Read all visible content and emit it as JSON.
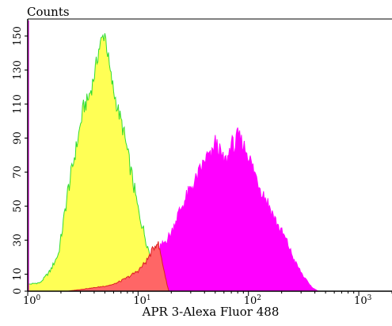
{
  "chart_data": {
    "type": "area",
    "ylabel": "Counts",
    "xlabel": "APR 3-Alexa Fluor 488",
    "x_scale": "log",
    "xlim": [
      1,
      2000
    ],
    "ylim": [
      0,
      160
    ],
    "y_ticks": [
      0,
      10,
      30,
      50,
      70,
      90,
      110,
      130,
      150
    ],
    "y_tick_labels": [
      "0",
      "10",
      "30",
      "50",
      "70",
      "90",
      "110",
      "130",
      "150"
    ],
    "x_ticks": [
      1,
      10,
      100,
      1000
    ],
    "x_tick_labels": [
      {
        "base": "10",
        "exp": "0"
      },
      {
        "base": "10",
        "exp": "1"
      },
      {
        "base": "10",
        "exp": "2"
      },
      {
        "base": "10",
        "exp": "3"
      }
    ],
    "grid": false,
    "series": [
      {
        "fill": "#ffff55",
        "stroke": "#33dd33",
        "x": [
          1.0,
          1.3,
          1.6,
          1.9,
          2.1,
          2.3,
          2.6,
          2.9,
          3.2,
          3.5,
          3.8,
          4.1,
          4.4,
          4.7,
          5.0,
          5.3,
          5.6,
          6.0,
          6.5,
          7.0,
          7.5,
          8.0,
          9.0,
          10,
          11,
          12,
          13,
          14,
          15,
          16,
          17,
          18,
          19
        ],
        "y": [
          4,
          5,
          12,
          22,
          40,
          58,
          76,
          92,
          108,
          112,
          120,
          130,
          142,
          148,
          152,
          140,
          128,
          118,
          108,
          100,
          92,
          82,
          64,
          48,
          38,
          28,
          20,
          14,
          8,
          5,
          3,
          1,
          0
        ]
      },
      {
        "fill": "#ff00ff",
        "stroke": "#ff00ff",
        "x": [
          12,
          13,
          14,
          15,
          16,
          17,
          18,
          20,
          22,
          25,
          28,
          31,
          34,
          37,
          40,
          43,
          46,
          50,
          55,
          60,
          65,
          70,
          75,
          80,
          90,
          100,
          110,
          130,
          150,
          180,
          220,
          260,
          320,
          380,
          430
        ],
        "y": [
          2,
          6,
          12,
          20,
          26,
          28,
          30,
          34,
          42,
          50,
          56,
          62,
          66,
          72,
          76,
          80,
          78,
          88,
          82,
          76,
          78,
          88,
          84,
          92,
          86,
          80,
          72,
          60,
          52,
          40,
          30,
          18,
          8,
          2,
          0
        ]
      },
      {
        "fill": "#ff6666",
        "stroke": "#dd2222",
        "x": [
          2.3,
          3.0,
          4.0,
          5.0,
          6.0,
          7.0,
          8.0,
          9.0,
          10,
          11,
          12,
          13,
          14,
          15,
          16,
          17,
          18,
          19
        ],
        "y": [
          0,
          1,
          2,
          3,
          4,
          6,
          8,
          10,
          12,
          15,
          18,
          22,
          26,
          29,
          22,
          14,
          6,
          0
        ]
      }
    ]
  }
}
